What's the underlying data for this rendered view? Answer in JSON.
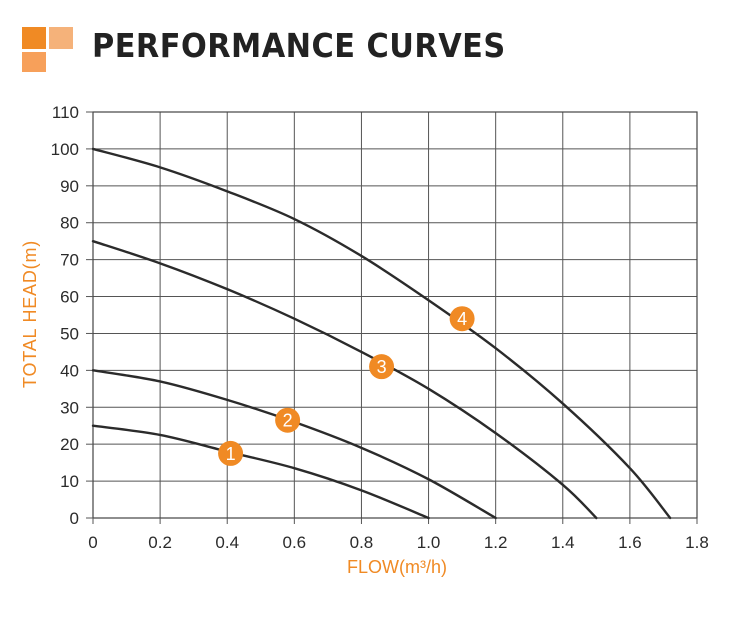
{
  "header": {
    "title": "PERFORMANCE CURVES",
    "accent_colors": [
      "#f08a24",
      "#f5b27a",
      "#f7a05a"
    ]
  },
  "chart_data": {
    "type": "line",
    "title": "PERFORMANCE CURVES",
    "xlabel": "FLOW(m³/h)",
    "ylabel": "TOTAL HEAD(m)",
    "xlim": [
      0,
      1.8
    ],
    "ylim": [
      0,
      110
    ],
    "x_ticks": [
      "0",
      "0.2",
      "0.4",
      "0.6",
      "0.8",
      "1.0",
      "1.2",
      "1.4",
      "1.6",
      "1.8"
    ],
    "y_ticks": [
      "0",
      "10",
      "20",
      "30",
      "40",
      "50",
      "60",
      "70",
      "80",
      "90",
      "100",
      "110"
    ],
    "grid": true,
    "label_color": "#f08a24",
    "line_color": "#2b2b2b",
    "series": [
      {
        "marker": "1",
        "marker_at": [
          0.41,
          17.5
        ],
        "points": [
          [
            0,
            25
          ],
          [
            0.2,
            22.5
          ],
          [
            0.4,
            18
          ],
          [
            0.6,
            13.5
          ],
          [
            0.8,
            7.5
          ],
          [
            1.0,
            0
          ]
        ]
      },
      {
        "marker": "2",
        "marker_at": [
          0.58,
          26.5
        ],
        "points": [
          [
            0,
            40
          ],
          [
            0.2,
            37
          ],
          [
            0.4,
            32
          ],
          [
            0.6,
            26
          ],
          [
            0.8,
            19
          ],
          [
            1.0,
            10.5
          ],
          [
            1.2,
            0
          ]
        ]
      },
      {
        "marker": "3",
        "marker_at": [
          0.86,
          41
        ],
        "points": [
          [
            0,
            75
          ],
          [
            0.2,
            69
          ],
          [
            0.4,
            62
          ],
          [
            0.6,
            54
          ],
          [
            0.8,
            45
          ],
          [
            1.0,
            35
          ],
          [
            1.2,
            23
          ],
          [
            1.4,
            9
          ],
          [
            1.5,
            0
          ]
        ]
      },
      {
        "marker": "4",
        "marker_at": [
          1.1,
          54
        ],
        "points": [
          [
            0,
            100
          ],
          [
            0.2,
            95
          ],
          [
            0.4,
            88.5
          ],
          [
            0.6,
            81
          ],
          [
            0.8,
            71
          ],
          [
            1.0,
            59
          ],
          [
            1.2,
            46
          ],
          [
            1.4,
            31
          ],
          [
            1.6,
            13.5
          ],
          [
            1.72,
            0
          ]
        ]
      }
    ]
  }
}
